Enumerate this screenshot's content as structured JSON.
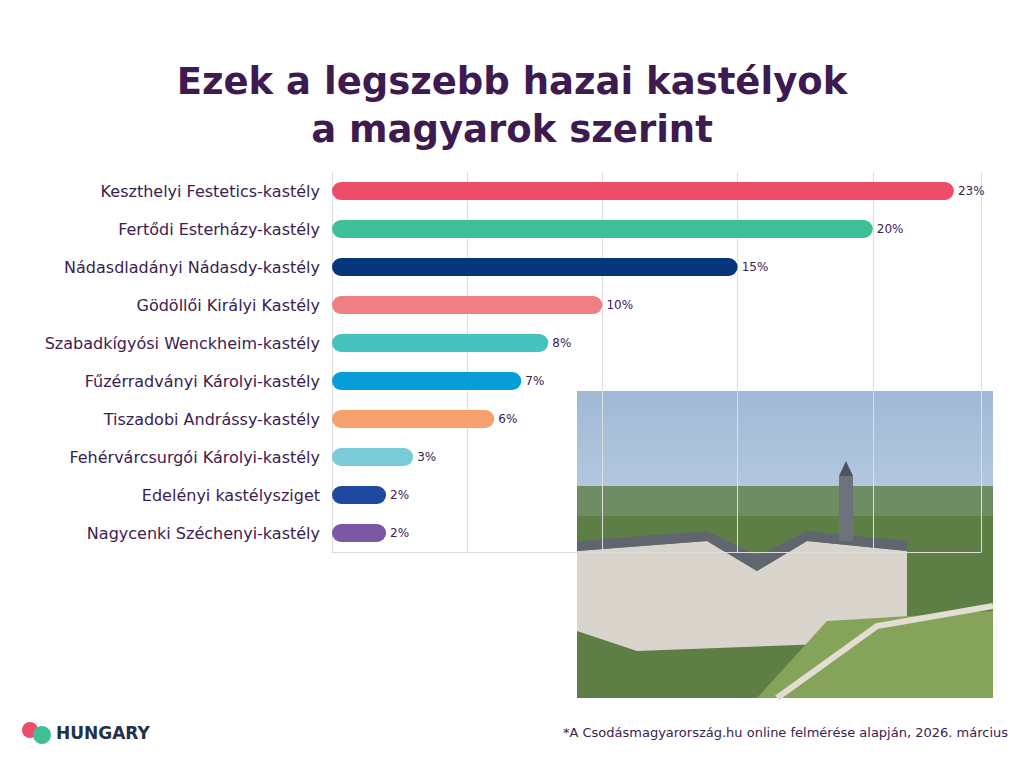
{
  "chart_data": {
    "type": "bar",
    "orientation": "horizontal",
    "title": "Ezek a legszebb hazai kastélyok\na magyarok szerint",
    "categories": [
      "Keszthelyi Festetics-kastély",
      "Fertődi Esterházy-kastély",
      "Nádasdladányi Nádasdy-kastély",
      "Gödöllői Királyi Kastély",
      "Szabadkígyósi Wenckheim-kastély",
      "Fűzérradványi Károlyi-kastély",
      "Tiszadobi Andrássy-kastély",
      "Fehérvárcsurgói Károlyi-kastély",
      "Edelényi kastélysziget",
      "Nagycenki Széchenyi-kastély"
    ],
    "values": [
      23,
      20,
      15,
      10,
      8,
      7,
      6,
      3,
      2,
      2
    ],
    "value_labels": [
      "23%",
      "20%",
      "15%",
      "10%",
      "8%",
      "7%",
      "6%",
      "3%",
      "2%",
      "2%"
    ],
    "colors": [
      "#ee4d6a",
      "#3dbf98",
      "#05357a",
      "#f07f84",
      "#46c2bf",
      "#079dd9",
      "#f6a06d",
      "#7acbd8",
      "#1f48a0",
      "#7b57a6"
    ],
    "xlim": [
      0,
      24
    ],
    "xticks": [
      0,
      5,
      10,
      15,
      20
    ],
    "grid": true,
    "data_labels": true,
    "tick_labels": "y",
    "footnote": "*A Csodásmagyarország.hu online felmérése alapján, 2026. március",
    "logo_text": "HUNGARY"
  }
}
